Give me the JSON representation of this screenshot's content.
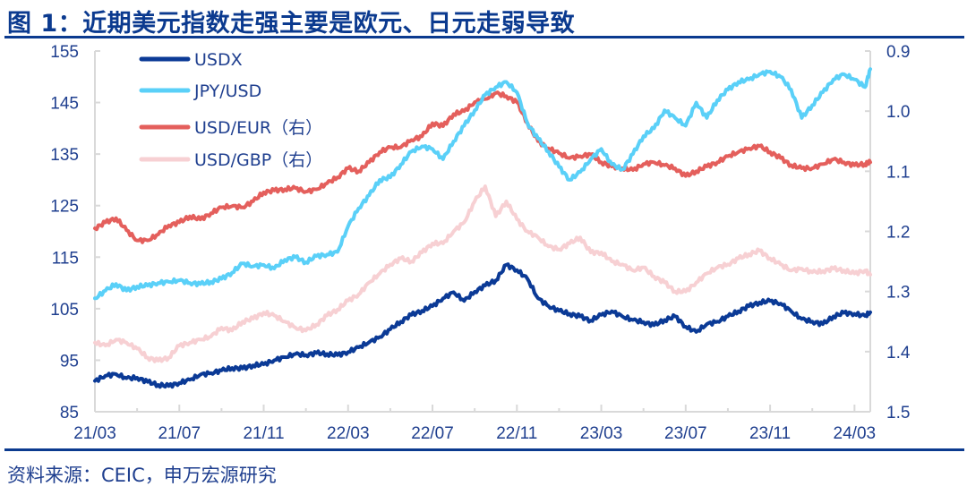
{
  "header": {
    "title": "图 1：近期美元指数走强主要是欧元、日元走弱导致"
  },
  "footer": {
    "source": "资料来源：CEIC，申万宏源研究"
  },
  "chart_data": {
    "type": "line",
    "title": "图 1：近期美元指数走强主要是欧元、日元走弱导致",
    "xlabel": "",
    "ylabel_left": "",
    "ylabel_right": "",
    "x_unit": "months since 2021/03",
    "x_range": [
      0,
      36.75
    ],
    "x_ticks": [
      {
        "x": 0,
        "label": "21/03"
      },
      {
        "x": 4,
        "label": "21/07"
      },
      {
        "x": 8,
        "label": "21/11"
      },
      {
        "x": 12,
        "label": "22/03"
      },
      {
        "x": 16,
        "label": "22/07"
      },
      {
        "x": 20,
        "label": "22/11"
      },
      {
        "x": 24,
        "label": "23/03"
      },
      {
        "x": 28,
        "label": "23/07"
      },
      {
        "x": 32,
        "label": "23/11"
      },
      {
        "x": 36,
        "label": "24/03"
      }
    ],
    "y_left": {
      "range": [
        85,
        155
      ],
      "ticks": [
        85,
        95,
        105,
        115,
        125,
        135,
        145,
        155
      ],
      "tick_labels": [
        "85",
        "95",
        "105",
        "115",
        "125",
        "135",
        "145",
        "155"
      ]
    },
    "y_right": {
      "range": [
        1.5,
        0.9
      ],
      "inverted": true,
      "ticks": [
        0.9,
        1.0,
        1.1,
        1.2,
        1.3,
        1.4,
        1.5
      ],
      "tick_labels": [
        "0.9",
        "1.0",
        "1.1",
        "1.2",
        "1.3",
        "1.4",
        "1.5"
      ]
    },
    "grid": false,
    "legend_position": "top-left",
    "series": [
      {
        "name": "USDX",
        "axis": "left",
        "color": "#0b3a96",
        "x": [
          0,
          0.5,
          1,
          1.5,
          2,
          2.5,
          3,
          3.5,
          4,
          4.5,
          5,
          5.5,
          6,
          6.5,
          7,
          7.5,
          8,
          8.5,
          9,
          9.5,
          10,
          10.5,
          11,
          11.5,
          12,
          12.5,
          13,
          13.5,
          14,
          14.5,
          15,
          15.5,
          16,
          16.5,
          17,
          17.5,
          18,
          18.5,
          19,
          19.5,
          20,
          20.5,
          21,
          21.5,
          22,
          22.5,
          23,
          23.5,
          24,
          24.5,
          25,
          25.5,
          26,
          26.5,
          27,
          27.5,
          28,
          28.5,
          29,
          29.5,
          30,
          30.5,
          31,
          31.5,
          32,
          32.5,
          33,
          33.5,
          34,
          34.5,
          35,
          35.5,
          36,
          36.5,
          36.75
        ],
        "values": [
          91.0,
          92.0,
          92.3,
          91.5,
          91.6,
          90.8,
          90.2,
          90.0,
          90.6,
          91.2,
          92.2,
          92.5,
          93.0,
          93.5,
          93.4,
          94.0,
          94.2,
          95.0,
          95.6,
          96.2,
          96.0,
          96.4,
          96.2,
          96.0,
          96.6,
          97.5,
          98.5,
          99.5,
          101.0,
          102.5,
          103.8,
          104.6,
          105.5,
          107.0,
          108.2,
          106.5,
          108.3,
          109.5,
          110.5,
          113.5,
          112.5,
          110.8,
          107.0,
          105.5,
          104.6,
          104.0,
          103.5,
          102.7,
          103.8,
          104.5,
          103.5,
          102.8,
          102.4,
          101.8,
          102.8,
          103.5,
          101.5,
          100.5,
          102.0,
          102.5,
          103.5,
          104.5,
          105.5,
          106.2,
          106.5,
          106.0,
          104.5,
          103.0,
          102.5,
          102.0,
          103.5,
          104.2,
          104.0,
          103.6,
          104.3
        ]
      },
      {
        "name": "JPY/USD",
        "axis": "left",
        "color": "#5ad0f8",
        "x": [
          0,
          0.5,
          1,
          1.5,
          2,
          2.5,
          3,
          3.5,
          4,
          4.5,
          5,
          5.5,
          6,
          6.5,
          7,
          7.5,
          8,
          8.5,
          9,
          9.5,
          10,
          10.5,
          11,
          11.5,
          12,
          12.5,
          13,
          13.5,
          14,
          14.5,
          15,
          15.5,
          16,
          16.5,
          17,
          17.5,
          18,
          18.5,
          19,
          19.5,
          20,
          20.5,
          21,
          21.5,
          22,
          22.5,
          23,
          23.5,
          24,
          24.5,
          25,
          25.5,
          26,
          26.5,
          27,
          27.5,
          28,
          28.5,
          29,
          29.5,
          30,
          30.5,
          31,
          31.5,
          32,
          32.5,
          33,
          33.5,
          34,
          34.5,
          35,
          35.5,
          36,
          36.5,
          36.75
        ],
        "values": [
          107.0,
          108.5,
          109.8,
          108.5,
          109.3,
          109.5,
          110.0,
          110.2,
          110.5,
          110.0,
          109.8,
          110.2,
          110.8,
          112.0,
          113.8,
          113.2,
          113.5,
          112.8,
          114.5,
          115.0,
          114.0,
          115.2,
          115.5,
          116.0,
          121.0,
          124.5,
          127.0,
          130.0,
          130.5,
          133.0,
          135.5,
          136.5,
          136.0,
          134.0,
          137.5,
          140.5,
          143.5,
          146.5,
          148.0,
          149.0,
          147.0,
          141.0,
          138.0,
          135.5,
          132.5,
          130.0,
          131.5,
          134.0,
          136.0,
          133.0,
          132.0,
          135.0,
          138.5,
          140.0,
          143.5,
          142.0,
          140.5,
          145.0,
          142.0,
          145.5,
          147.5,
          149.0,
          149.5,
          150.5,
          151.0,
          150.0,
          147.5,
          142.0,
          144.5,
          147.0,
          149.5,
          150.5,
          149.5,
          148.0,
          151.5
        ]
      },
      {
        "name": "USD/EUR（右）",
        "axis": "right",
        "color": "#e45f5c",
        "x": [
          0,
          0.5,
          1,
          1.5,
          2,
          2.5,
          3,
          3.5,
          4,
          4.5,
          5,
          5.5,
          6,
          6.5,
          7,
          7.5,
          8,
          8.5,
          9,
          9.5,
          10,
          10.5,
          11,
          11.5,
          12,
          12.5,
          13,
          13.5,
          14,
          14.5,
          15,
          15.5,
          16,
          16.5,
          17,
          17.5,
          18,
          18.5,
          19,
          19.5,
          20,
          20.5,
          21,
          21.5,
          22,
          22.5,
          23,
          23.5,
          24,
          24.5,
          25,
          25.5,
          26,
          26.5,
          27,
          27.5,
          28,
          28.5,
          29,
          29.5,
          30,
          30.5,
          31,
          31.5,
          32,
          32.5,
          33,
          33.5,
          34,
          34.5,
          35,
          35.5,
          36,
          36.5,
          36.75
        ],
        "values": [
          1.195,
          1.185,
          1.178,
          1.198,
          1.215,
          1.215,
          1.205,
          1.19,
          1.185,
          1.175,
          1.18,
          1.17,
          1.16,
          1.158,
          1.16,
          1.15,
          1.135,
          1.132,
          1.13,
          1.128,
          1.134,
          1.13,
          1.12,
          1.11,
          1.095,
          1.1,
          1.085,
          1.068,
          1.06,
          1.06,
          1.048,
          1.042,
          1.02,
          1.025,
          1.005,
          1.0,
          0.985,
          0.98,
          0.97,
          0.975,
          0.985,
          1.02,
          1.05,
          1.062,
          1.07,
          1.078,
          1.075,
          1.072,
          1.085,
          1.092,
          1.095,
          1.098,
          1.088,
          1.085,
          1.09,
          1.095,
          1.108,
          1.1,
          1.092,
          1.085,
          1.075,
          1.068,
          1.062,
          1.058,
          1.068,
          1.078,
          1.09,
          1.095,
          1.095,
          1.088,
          1.08,
          1.085,
          1.09,
          1.088,
          1.085
        ]
      },
      {
        "name": "USD/GBP（右）",
        "axis": "right",
        "color": "#f7d0d3",
        "x": [
          0,
          0.5,
          1,
          1.5,
          2,
          2.5,
          3,
          3.5,
          4,
          4.5,
          5,
          5.5,
          6,
          6.5,
          7,
          7.5,
          8,
          8.5,
          9,
          9.5,
          10,
          10.5,
          11,
          11.5,
          12,
          12.5,
          13,
          13.5,
          14,
          14.5,
          15,
          15.5,
          16,
          16.5,
          17,
          17.5,
          18,
          18.5,
          19,
          19.5,
          20,
          20.5,
          21,
          21.5,
          22,
          22.5,
          23,
          23.5,
          24,
          24.5,
          25,
          25.5,
          26,
          26.5,
          27,
          27.5,
          28,
          28.5,
          29,
          29.5,
          30,
          30.5,
          31,
          31.5,
          32,
          32.5,
          33,
          33.5,
          34,
          34.5,
          35,
          35.5,
          36,
          36.5,
          36.75
        ],
        "values": [
          1.385,
          1.39,
          1.38,
          1.385,
          1.395,
          1.41,
          1.415,
          1.41,
          1.39,
          1.385,
          1.38,
          1.375,
          1.36,
          1.365,
          1.35,
          1.345,
          1.335,
          1.34,
          1.35,
          1.36,
          1.365,
          1.355,
          1.34,
          1.33,
          1.315,
          1.305,
          1.285,
          1.27,
          1.255,
          1.245,
          1.25,
          1.235,
          1.22,
          1.22,
          1.2,
          1.185,
          1.15,
          1.125,
          1.175,
          1.15,
          1.18,
          1.2,
          1.21,
          1.225,
          1.23,
          1.22,
          1.21,
          1.235,
          1.235,
          1.25,
          1.255,
          1.265,
          1.26,
          1.275,
          1.285,
          1.3,
          1.3,
          1.285,
          1.27,
          1.26,
          1.255,
          1.245,
          1.238,
          1.232,
          1.245,
          1.255,
          1.265,
          1.262,
          1.268,
          1.266,
          1.262,
          1.265,
          1.27,
          1.265,
          1.272
        ]
      }
    ]
  }
}
